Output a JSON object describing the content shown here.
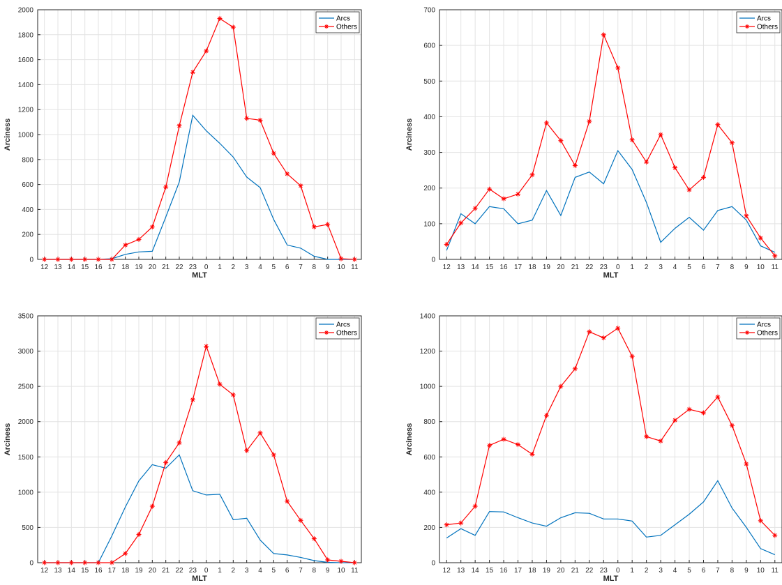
{
  "chart_data": [
    {
      "type": "line",
      "xlabel": "MLT",
      "ylabel": "Arciness",
      "ylim": [
        0,
        2000
      ],
      "yticks": [
        0,
        200,
        400,
        600,
        800,
        1000,
        1200,
        1400,
        1600,
        1800,
        2000
      ],
      "categories": [
        "12",
        "13",
        "14",
        "15",
        "16",
        "17",
        "18",
        "19",
        "20",
        "21",
        "22",
        "23",
        "0",
        "1",
        "2",
        "3",
        "4",
        "5",
        "6",
        "7",
        "8",
        "9",
        "10",
        "11"
      ],
      "grid": true,
      "legend_position": "top-right",
      "series": [
        {
          "name": "Arcs",
          "color": "#0072bd",
          "marker": "none",
          "values": [
            0,
            0,
            0,
            0,
            0,
            5,
            40,
            60,
            65,
            340,
            620,
            1155,
            1030,
            930,
            820,
            660,
            575,
            320,
            115,
            90,
            25,
            0,
            0,
            0
          ]
        },
        {
          "name": "Others",
          "color": "#ff0000",
          "marker": "asterisk",
          "values": [
            0,
            0,
            0,
            0,
            0,
            0,
            115,
            160,
            260,
            580,
            1070,
            1500,
            1670,
            1930,
            1860,
            1130,
            1115,
            850,
            685,
            590,
            260,
            280,
            5,
            0
          ]
        }
      ]
    },
    {
      "type": "line",
      "xlabel": "MLT",
      "ylabel": "Arciness",
      "ylim": [
        0,
        700
      ],
      "yticks": [
        0,
        100,
        200,
        300,
        400,
        500,
        600,
        700
      ],
      "categories": [
        "12",
        "13",
        "14",
        "15",
        "16",
        "17",
        "18",
        "19",
        "20",
        "21",
        "22",
        "23",
        "0",
        "1",
        "2",
        "3",
        "4",
        "5",
        "6",
        "7",
        "8",
        "9",
        "10",
        "11"
      ],
      "grid": true,
      "legend_position": "top-right",
      "series": [
        {
          "name": "Arcs",
          "color": "#0072bd",
          "marker": "none",
          "values": [
            25,
            128,
            100,
            148,
            142,
            100,
            110,
            193,
            123,
            230,
            245,
            212,
            305,
            252,
            160,
            48,
            87,
            118,
            82,
            137,
            148,
            110,
            38,
            20
          ]
        },
        {
          "name": "Others",
          "color": "#ff0000",
          "marker": "asterisk",
          "values": [
            42,
            102,
            143,
            197,
            170,
            183,
            237,
            383,
            333,
            263,
            387,
            630,
            537,
            335,
            273,
            350,
            257,
            195,
            230,
            378,
            327,
            122,
            60,
            10
          ]
        }
      ]
    },
    {
      "type": "line",
      "xlabel": "MLT",
      "ylabel": "Arciness",
      "ylim": [
        0,
        3500
      ],
      "yticks": [
        0,
        500,
        1000,
        1500,
        2000,
        2500,
        3000,
        3500
      ],
      "categories": [
        "12",
        "13",
        "14",
        "15",
        "16",
        "17",
        "18",
        "19",
        "20",
        "21",
        "22",
        "23",
        "0",
        "1",
        "2",
        "3",
        "4",
        "5",
        "6",
        "7",
        "8",
        "9",
        "10",
        "11"
      ],
      "grid": true,
      "legend_position": "top-right",
      "series": [
        {
          "name": "Arcs",
          "color": "#0072bd",
          "marker": "none",
          "values": [
            0,
            0,
            0,
            0,
            0,
            380,
            790,
            1160,
            1390,
            1340,
            1530,
            1020,
            960,
            970,
            610,
            630,
            320,
            130,
            110,
            75,
            30,
            5,
            0,
            0
          ]
        },
        {
          "name": "Others",
          "color": "#ff0000",
          "marker": "asterisk",
          "values": [
            0,
            0,
            0,
            0,
            0,
            0,
            130,
            400,
            800,
            1420,
            1700,
            2310,
            3070,
            2530,
            2380,
            1590,
            1840,
            1530,
            870,
            600,
            340,
            40,
            20,
            0
          ]
        }
      ]
    },
    {
      "type": "line",
      "xlabel": "MLT",
      "ylabel": "Arciness",
      "ylim": [
        0,
        1400
      ],
      "yticks": [
        0,
        200,
        400,
        600,
        800,
        1000,
        1200,
        1400
      ],
      "categories": [
        "12",
        "13",
        "14",
        "15",
        "16",
        "17",
        "18",
        "19",
        "20",
        "21",
        "22",
        "23",
        "0",
        "1",
        "2",
        "3",
        "4",
        "5",
        "6",
        "7",
        "8",
        "9",
        "10",
        "11"
      ],
      "grid": true,
      "legend_position": "top-right",
      "series": [
        {
          "name": "Arcs",
          "color": "#0072bd",
          "marker": "none",
          "values": [
            140,
            193,
            155,
            290,
            288,
            255,
            225,
            207,
            255,
            283,
            280,
            248,
            248,
            236,
            145,
            155,
            215,
            275,
            345,
            465,
            310,
            200,
            80,
            45
          ]
        },
        {
          "name": "Others",
          "color": "#ff0000",
          "marker": "asterisk",
          "values": [
            215,
            225,
            320,
            665,
            700,
            670,
            615,
            835,
            1000,
            1100,
            1310,
            1275,
            1330,
            1170,
            715,
            690,
            808,
            870,
            850,
            940,
            778,
            560,
            238,
            155
          ]
        }
      ]
    }
  ]
}
